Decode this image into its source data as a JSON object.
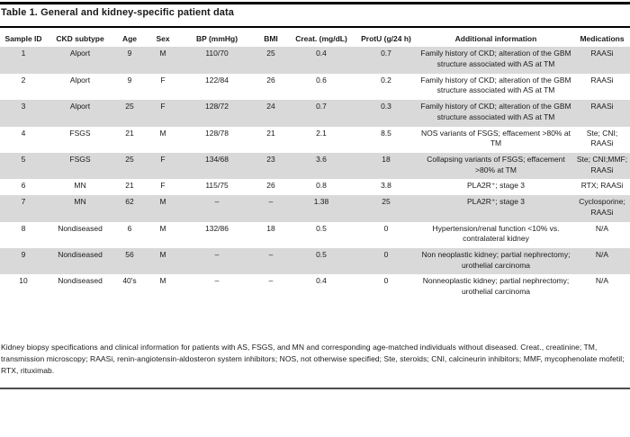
{
  "title": "Table 1. General and kidney-specific patient data",
  "colors": {
    "row_shade": "#d9d9d9",
    "top_rule": "#000000",
    "bottom_rule": "#4d4d4d",
    "text": "#1a1a1a"
  },
  "table": {
    "columns": [
      {
        "key": "sample_id",
        "label": "Sample ID"
      },
      {
        "key": "ckd_subtype",
        "label": "CKD subtype"
      },
      {
        "key": "age",
        "label": "Age"
      },
      {
        "key": "sex",
        "label": "Sex"
      },
      {
        "key": "bp",
        "label": "BP (mmHg)"
      },
      {
        "key": "bmi",
        "label": "BMI"
      },
      {
        "key": "creat",
        "label": "Creat. (mg/dL)"
      },
      {
        "key": "protu",
        "label": "ProtU (g/24 h)"
      },
      {
        "key": "info",
        "label": "Additional information"
      },
      {
        "key": "meds",
        "label": "Medications"
      }
    ],
    "rows": [
      {
        "sample_id": "1",
        "ckd_subtype": "Alport",
        "age": "9",
        "sex": "M",
        "bp": "110/70",
        "bmi": "25",
        "creat": "0.4",
        "protu": "0.7",
        "info": "Family history of CKD; alteration of the GBM structure associated with AS at TM",
        "meds": "RAASi"
      },
      {
        "sample_id": "2",
        "ckd_subtype": "Alport",
        "age": "9",
        "sex": "F",
        "bp": "122/84",
        "bmi": "26",
        "creat": "0.6",
        "protu": "0.2",
        "info": "Family history of CKD; alteration of the GBM structure associated with AS at TM",
        "meds": "RAASi"
      },
      {
        "sample_id": "3",
        "ckd_subtype": "Alport",
        "age": "25",
        "sex": "F",
        "bp": "128/72",
        "bmi": "24",
        "creat": "0.7",
        "protu": "0.3",
        "info": "Family history of CKD; alteration of the GBM structure associated with AS at TM",
        "meds": "RAASi"
      },
      {
        "sample_id": "4",
        "ckd_subtype": "FSGS",
        "age": "21",
        "sex": "M",
        "bp": "128/78",
        "bmi": "21",
        "creat": "2.1",
        "protu": "8.5",
        "info": "NOS variants of FSGS; effacement >80% at TM",
        "meds": "Ste; CNI; RAASi"
      },
      {
        "sample_id": "5",
        "ckd_subtype": "FSGS",
        "age": "25",
        "sex": "F",
        "bp": "134/68",
        "bmi": "23",
        "creat": "3.6",
        "protu": "18",
        "info": "Collapsing variants of FSGS; effacement >80% at TM",
        "meds": "Ste; CNI;MMF; RAASi"
      },
      {
        "sample_id": "6",
        "ckd_subtype": "MN",
        "age": "21",
        "sex": "F",
        "bp": "115/75",
        "bmi": "26",
        "creat": "0.8",
        "protu": "3.8",
        "info": "PLA2R⁺; stage 3",
        "meds": "RTX; RAASi"
      },
      {
        "sample_id": "7",
        "ckd_subtype": "MN",
        "age": "62",
        "sex": "M",
        "bp": "–",
        "bmi": "–",
        "creat": "1.38",
        "protu": "25",
        "info": "PLA2R⁺; stage 3",
        "meds": "Cyclosporine; RAASi"
      },
      {
        "sample_id": "8",
        "ckd_subtype": "Nondiseased",
        "age": "6",
        "sex": "M",
        "bp": "132/86",
        "bmi": "18",
        "creat": "0.5",
        "protu": "0",
        "info": "Hypertension/renal function <10% vs. contralateral kidney",
        "meds": "N/A"
      },
      {
        "sample_id": "9",
        "ckd_subtype": "Nondiseased",
        "age": "56",
        "sex": "M",
        "bp": "–",
        "bmi": "–",
        "creat": "0.5",
        "protu": "0",
        "info": "Non neoplastic kidney; partial nephrectomy; urothelial carcinoma",
        "meds": "N/A"
      },
      {
        "sample_id": "10",
        "ckd_subtype": "Nondiseased",
        "age": "40's",
        "sex": "M",
        "bp": "–",
        "bmi": "–",
        "creat": "0.4",
        "protu": "0",
        "info": "Nonneoplastic kidney; partial nephrectomy; urothelial carcinoma",
        "meds": "N/A"
      }
    ]
  },
  "footnote": "Kidney biopsy specifications and clinical information for patients with AS, FSGS, and MN and corresponding age-matched individuals without diseased. Creat., creatinine; TM, transmission microscopy; RAASi, renin-angiotensin-aldosteron system inhibitors; NOS, not otherwise specified; Ste, steroids; CNI, calcineurin inhibitors; MMF, mycophenolate mofetil; RTX, rituximab."
}
